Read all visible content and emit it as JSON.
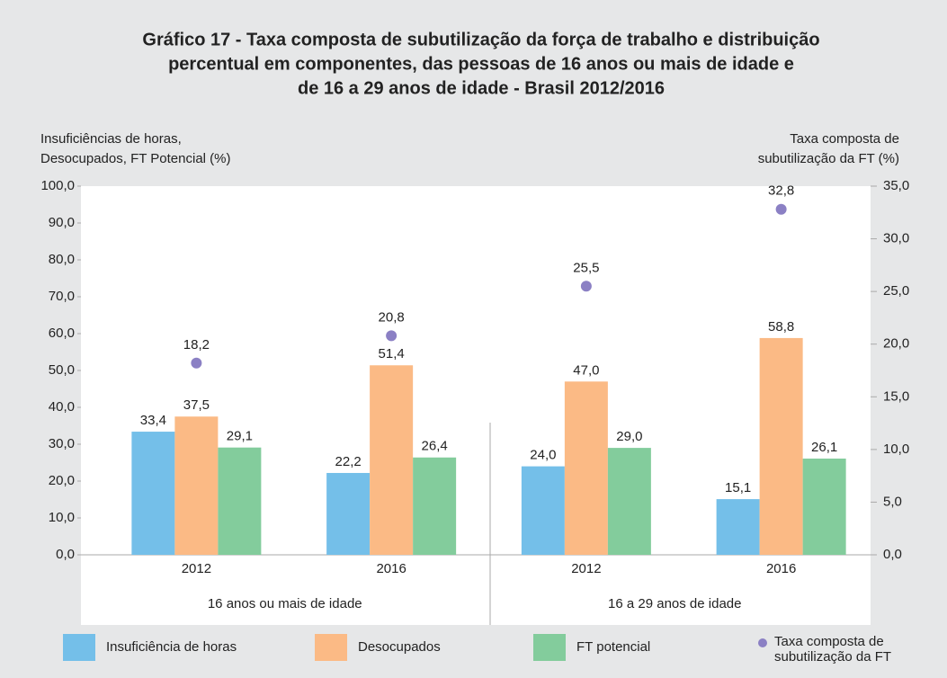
{
  "chart_data": {
    "type": "bar",
    "title": [
      "Gráfico 17 - Taxa composta de subutilização da força de trabalho e distribuição",
      "percentual em componentes, das pessoas de 16 anos ou mais de idade e",
      "de 16 a 29 anos de idade - Brasil 2012/2016"
    ],
    "y_label": [
      "Insuficiências de horas,",
      "Desocupados, FT Potencial (%)"
    ],
    "y2_label": [
      "Taxa composta de",
      "subutilização da FT (%)"
    ],
    "categories": [
      "2012",
      "2016",
      "2012",
      "2016"
    ],
    "groups": [
      "16 anos ou mais de idade",
      "16 a 29 anos de idade"
    ],
    "series": [
      {
        "name": "Insuficiência de horas",
        "color": "#74bfe9",
        "values": [
          33.4,
          22.2,
          24.0,
          15.1
        ],
        "value_labels": [
          "33,4",
          "22,2",
          "24,0",
          "15,1"
        ]
      },
      {
        "name": "Desocupados",
        "color": "#fbba85",
        "values": [
          37.5,
          51.4,
          47.0,
          58.8
        ],
        "value_labels": [
          "37,5",
          "51,4",
          "47,0",
          "58,8"
        ]
      },
      {
        "name": "FT potencial",
        "color": "#83cc9c",
        "values": [
          29.1,
          26.4,
          29.0,
          26.1
        ],
        "value_labels": [
          "29,1",
          "26,4",
          "29,0",
          "26,1"
        ]
      },
      {
        "name": "Taxa composta de subutilização da FT",
        "color": "#8b80c4",
        "type": "scatter",
        "axis": "y2",
        "values": [
          18.2,
          20.8,
          25.5,
          32.8
        ],
        "value_labels": [
          "18,2",
          "20,8",
          "25,5",
          "32,8"
        ]
      }
    ],
    "ylim": [
      0,
      100
    ],
    "yticks": [
      {
        "value": 0,
        "label": "0,0"
      },
      {
        "value": 10,
        "label": "10,0"
      },
      {
        "value": 20,
        "label": "20,0"
      },
      {
        "value": 30,
        "label": "30,0"
      },
      {
        "value": 40,
        "label": "40,0"
      },
      {
        "value": 50,
        "label": "50,0"
      },
      {
        "value": 60,
        "label": "60,0"
      },
      {
        "value": 70,
        "label": "70,0"
      },
      {
        "value": 80,
        "label": "80,0"
      },
      {
        "value": 90,
        "label": "90,0"
      },
      {
        "value": 100,
        "label": "100,0"
      }
    ],
    "y2lim": [
      0,
      35
    ],
    "y2ticks": [
      {
        "value": 0,
        "label": "0,0"
      },
      {
        "value": 5,
        "label": "5,0"
      },
      {
        "value": 10,
        "label": "10,0"
      },
      {
        "value": 15,
        "label": "15,0"
      },
      {
        "value": 20,
        "label": "20,0"
      },
      {
        "value": 25,
        "label": "25,0"
      },
      {
        "value": 30,
        "label": "30,0"
      },
      {
        "value": 35,
        "label": "35,0"
      }
    ],
    "grid": false
  }
}
